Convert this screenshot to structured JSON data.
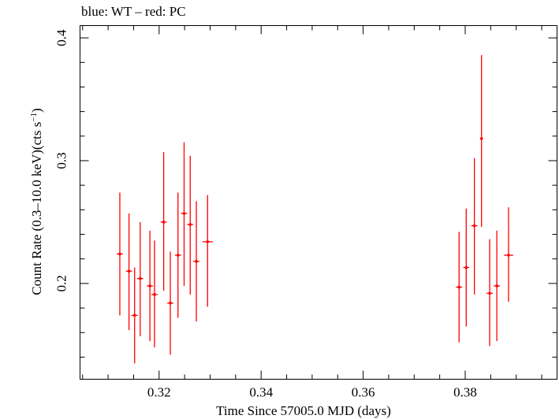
{
  "chart_data": {
    "type": "scatter",
    "title": "blue: WT – red: PC",
    "xlabel": "Time Since 57005.0 MJD (days)",
    "ylabel_main": "Count Rate (0.3–10.0 keV)(cts s",
    "ylabel_sup": "−1",
    "ylabel_end": ")",
    "xlim": [
      0.3045,
      0.398
    ],
    "ylim": [
      0.122,
      0.41
    ],
    "x_ticks": [
      0.32,
      0.34,
      0.36,
      0.38
    ],
    "x_tick_labels": [
      "0.32",
      "0.34",
      "0.36",
      "0.38"
    ],
    "y_ticks": [
      0.2,
      0.3,
      0.4
    ],
    "y_tick_labels": [
      "0.2",
      "0.3",
      "0.4"
    ],
    "grid": false,
    "series": [
      {
        "color": "#ff0000",
        "points": [
          {
            "x": 0.3123,
            "xerr": 0.0006,
            "y": 0.224,
            "yerr_lo": 0.05,
            "yerr_hi": 0.05
          },
          {
            "x": 0.3141,
            "xerr": 0.0006,
            "y": 0.21,
            "yerr_lo": 0.048,
            "yerr_hi": 0.047
          },
          {
            "x": 0.3152,
            "xerr": 0.0006,
            "y": 0.174,
            "yerr_lo": 0.039,
            "yerr_hi": 0.039
          },
          {
            "x": 0.3163,
            "xerr": 0.0006,
            "y": 0.204,
            "yerr_lo": 0.047,
            "yerr_hi": 0.046
          },
          {
            "x": 0.3182,
            "xerr": 0.0006,
            "y": 0.198,
            "yerr_lo": 0.045,
            "yerr_hi": 0.045
          },
          {
            "x": 0.3191,
            "xerr": 0.0006,
            "y": 0.191,
            "yerr_lo": 0.043,
            "yerr_hi": 0.044
          },
          {
            "x": 0.3209,
            "xerr": 0.0006,
            "y": 0.25,
            "yerr_lo": 0.056,
            "yerr_hi": 0.057
          },
          {
            "x": 0.3222,
            "xerr": 0.0006,
            "y": 0.184,
            "yerr_lo": 0.042,
            "yerr_hi": 0.042
          },
          {
            "x": 0.3237,
            "xerr": 0.0006,
            "y": 0.223,
            "yerr_lo": 0.051,
            "yerr_hi": 0.051
          },
          {
            "x": 0.3249,
            "xerr": 0.0006,
            "y": 0.257,
            "yerr_lo": 0.059,
            "yerr_hi": 0.058
          },
          {
            "x": 0.3261,
            "xerr": 0.0006,
            "y": 0.248,
            "yerr_lo": 0.057,
            "yerr_hi": 0.056
          },
          {
            "x": 0.3273,
            "xerr": 0.0006,
            "y": 0.218,
            "yerr_lo": 0.049,
            "yerr_hi": 0.049
          },
          {
            "x": 0.3295,
            "xerr": 0.001,
            "y": 0.234,
            "yerr_lo": 0.053,
            "yerr_hi": 0.038
          },
          {
            "x": 0.3788,
            "xerr": 0.0006,
            "y": 0.197,
            "yerr_lo": 0.045,
            "yerr_hi": 0.045
          },
          {
            "x": 0.3802,
            "xerr": 0.0006,
            "y": 0.213,
            "yerr_lo": 0.048,
            "yerr_hi": 0.048
          },
          {
            "x": 0.3818,
            "xerr": 0.0006,
            "y": 0.247,
            "yerr_lo": 0.056,
            "yerr_hi": 0.055
          },
          {
            "x": 0.3832,
            "xerr": 0.0003,
            "y": 0.318,
            "yerr_lo": 0.072,
            "yerr_hi": 0.068
          },
          {
            "x": 0.3848,
            "xerr": 0.0006,
            "y": 0.192,
            "yerr_lo": 0.043,
            "yerr_hi": 0.044
          },
          {
            "x": 0.3862,
            "xerr": 0.0006,
            "y": 0.198,
            "yerr_lo": 0.045,
            "yerr_hi": 0.045
          },
          {
            "x": 0.3885,
            "xerr": 0.0009,
            "y": 0.223,
            "yerr_lo": 0.038,
            "yerr_hi": 0.039
          }
        ]
      }
    ]
  }
}
